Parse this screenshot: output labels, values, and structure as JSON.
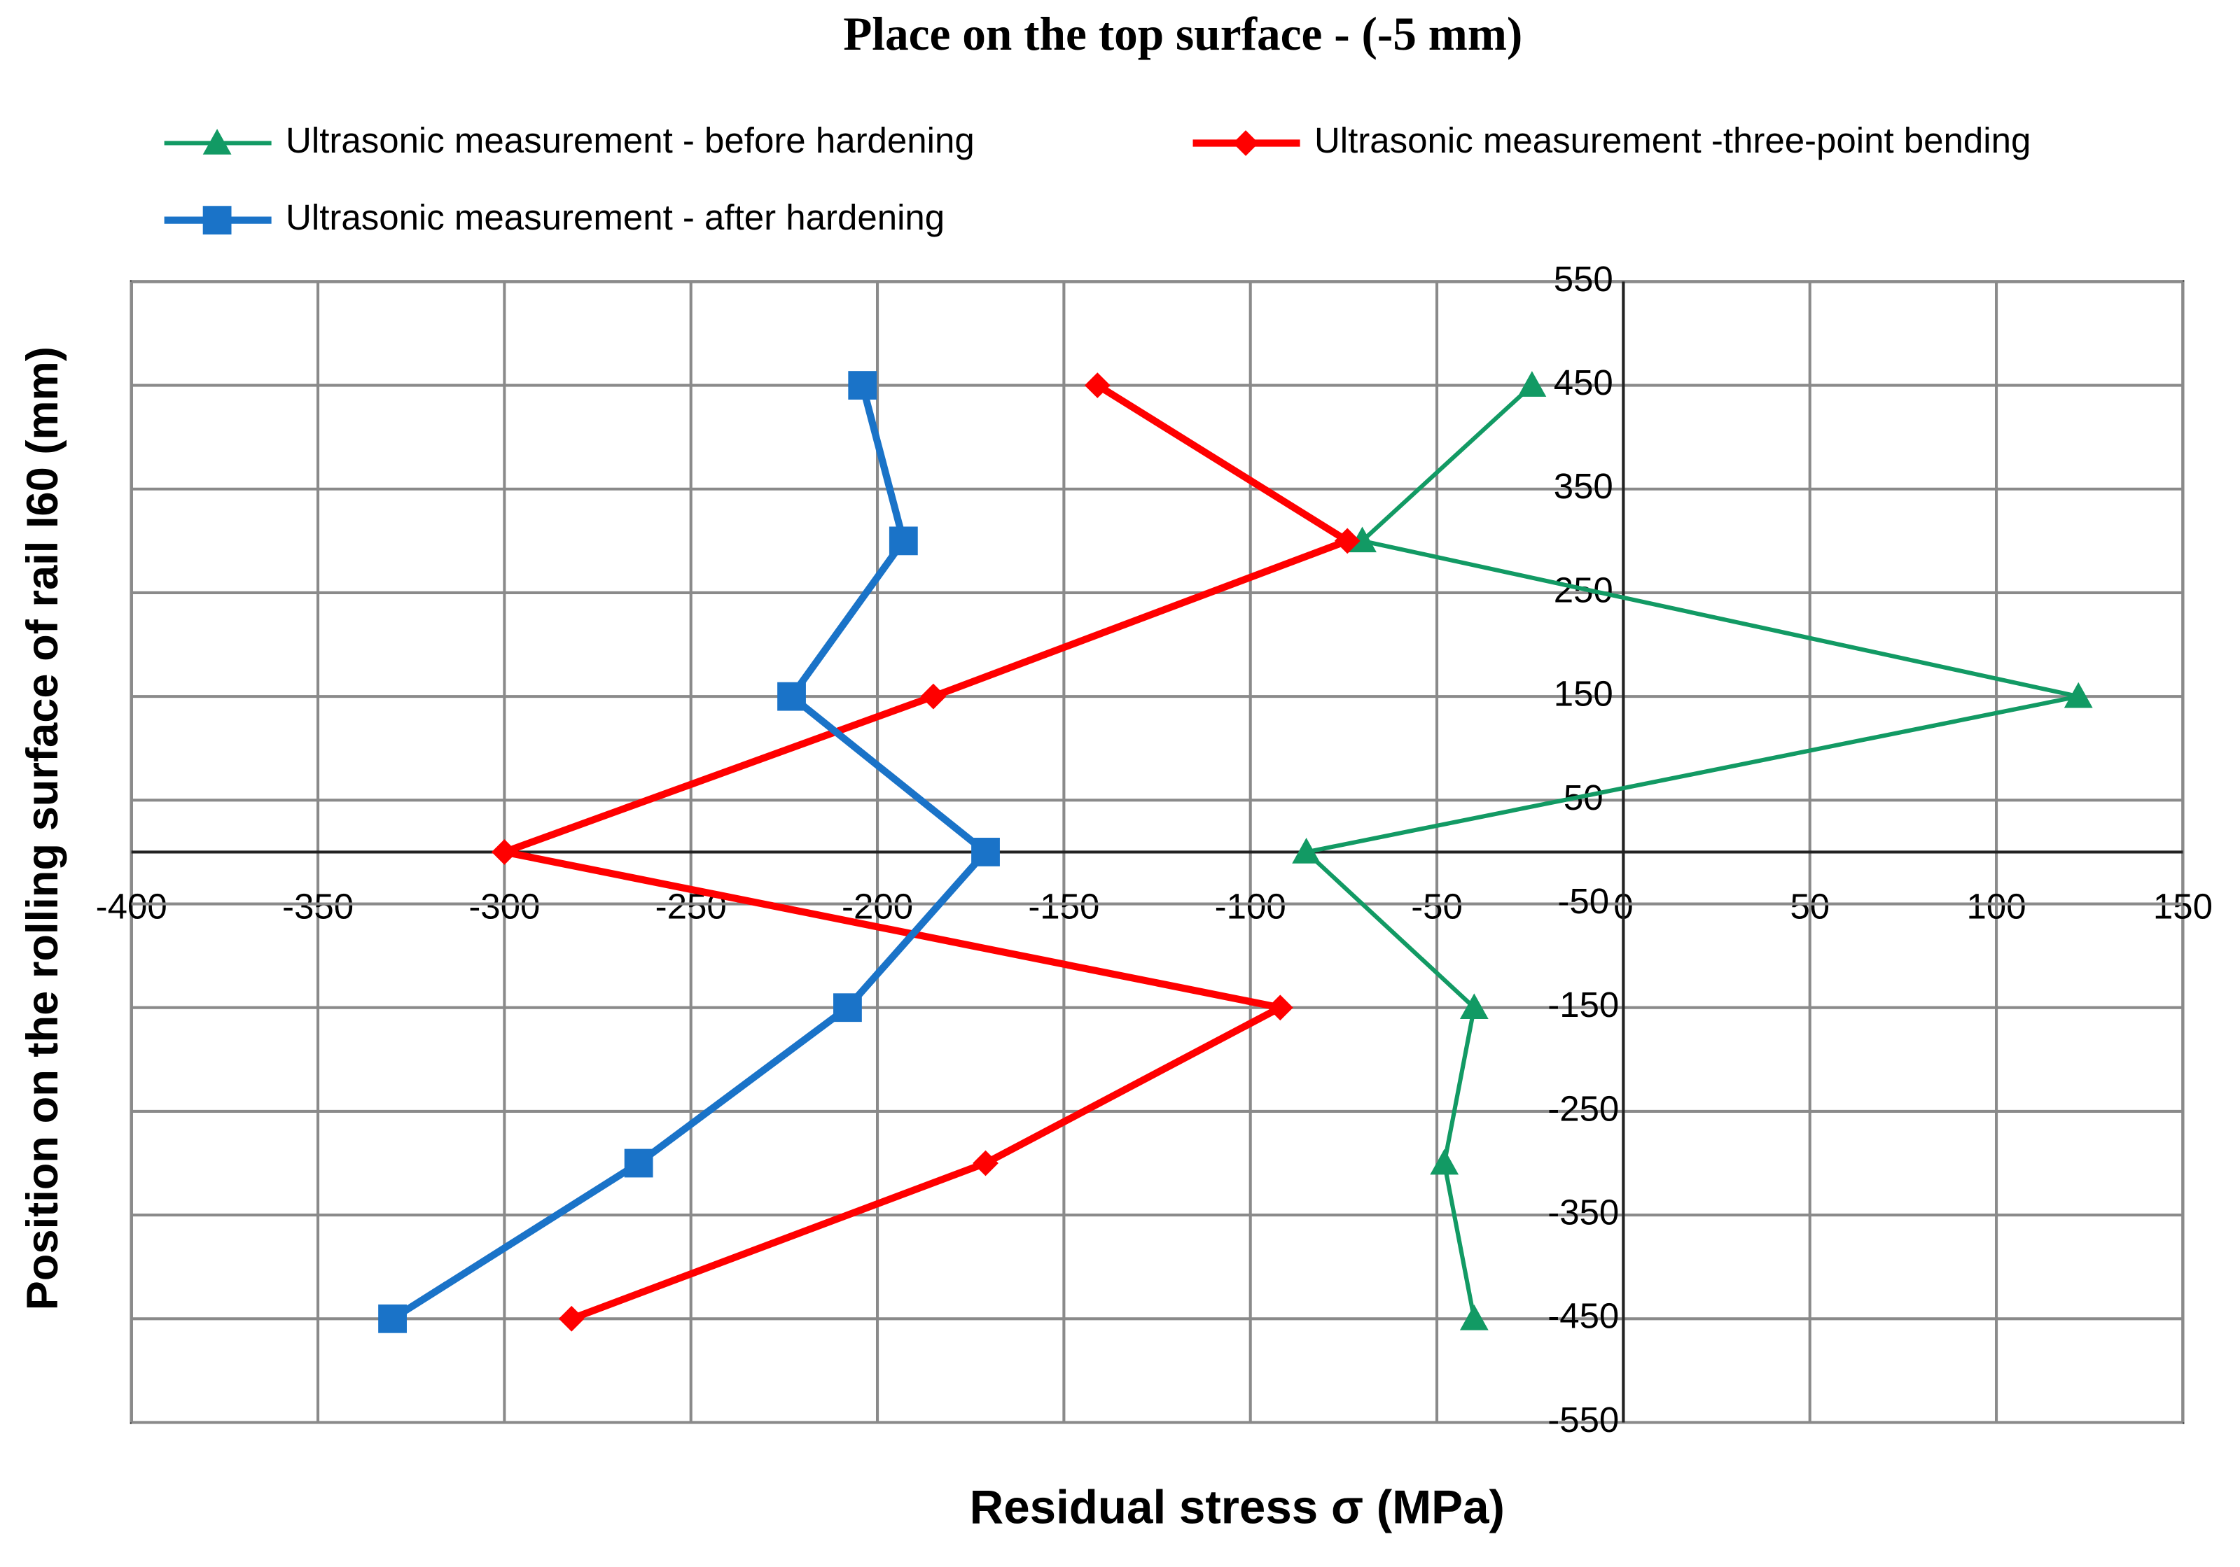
{
  "chart_data": {
    "type": "line",
    "title": "Place on the top surface - (-5 mm)",
    "xlabel": "Residual stress  σ (MPa)",
    "ylabel": "Position on the rolling surface of rail I60 (mm)",
    "y": [
      450,
      300,
      150,
      0,
      -150,
      -300,
      -450
    ],
    "series": [
      {
        "name": "Ultrasonic measurement - before hardening",
        "color": "#129a64",
        "marker": "triangle",
        "values": [
          -24.5,
          -70,
          122,
          -85,
          -40,
          -48,
          -40
        ]
      },
      {
        "name": "Ultrasonic measurement -three-point bending",
        "color": "#ff0000",
        "marker": "diamond",
        "values": [
          -141,
          -74,
          -185,
          -300,
          -92,
          -171,
          -282
        ]
      },
      {
        "name": "Ultrasonic measurement - after hardening",
        "color": "#1a73c8",
        "marker": "square",
        "values": [
          -204,
          -193,
          -223,
          -171,
          -208,
          -264,
          -330
        ]
      }
    ],
    "xlim": [
      -400,
      150
    ],
    "xticks": [
      -400,
      -350,
      -300,
      -250,
      -200,
      -150,
      -100,
      -50,
      0,
      50,
      100,
      150
    ],
    "ylim": [
      -550,
      550
    ],
    "yticks": [
      -550,
      -450,
      -350,
      -250,
      -150,
      -50,
      50,
      150,
      250,
      350,
      450,
      550
    ],
    "grid": true
  }
}
